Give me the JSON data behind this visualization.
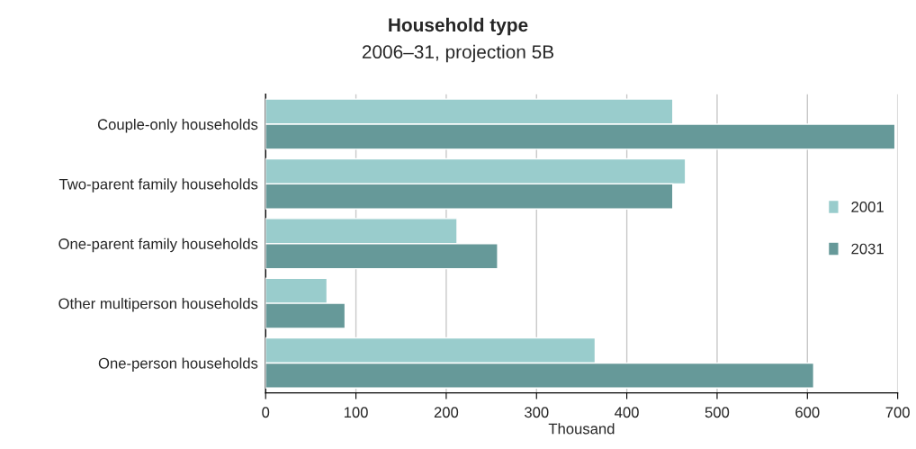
{
  "chart_data": {
    "type": "bar",
    "orientation": "horizontal",
    "title": "Household type",
    "subtitle": "2006–31, projection 5B",
    "xlabel": "Thousand",
    "categories": [
      "Couple-only households",
      "Two-parent family households",
      "One-parent family households",
      "Other multiperson households",
      "One-person households"
    ],
    "series": [
      {
        "name": "2001",
        "color": "#99cccc",
        "values": [
          451,
          465,
          212,
          68,
          365
        ]
      },
      {
        "name": "2031",
        "color": "#669999",
        "values": [
          697,
          451,
          257,
          88,
          607
        ]
      }
    ],
    "xlim": [
      0,
      700
    ],
    "xticks": [
      0,
      100,
      200,
      300,
      400,
      500,
      600,
      700
    ],
    "grid": "x",
    "legend": "right"
  }
}
